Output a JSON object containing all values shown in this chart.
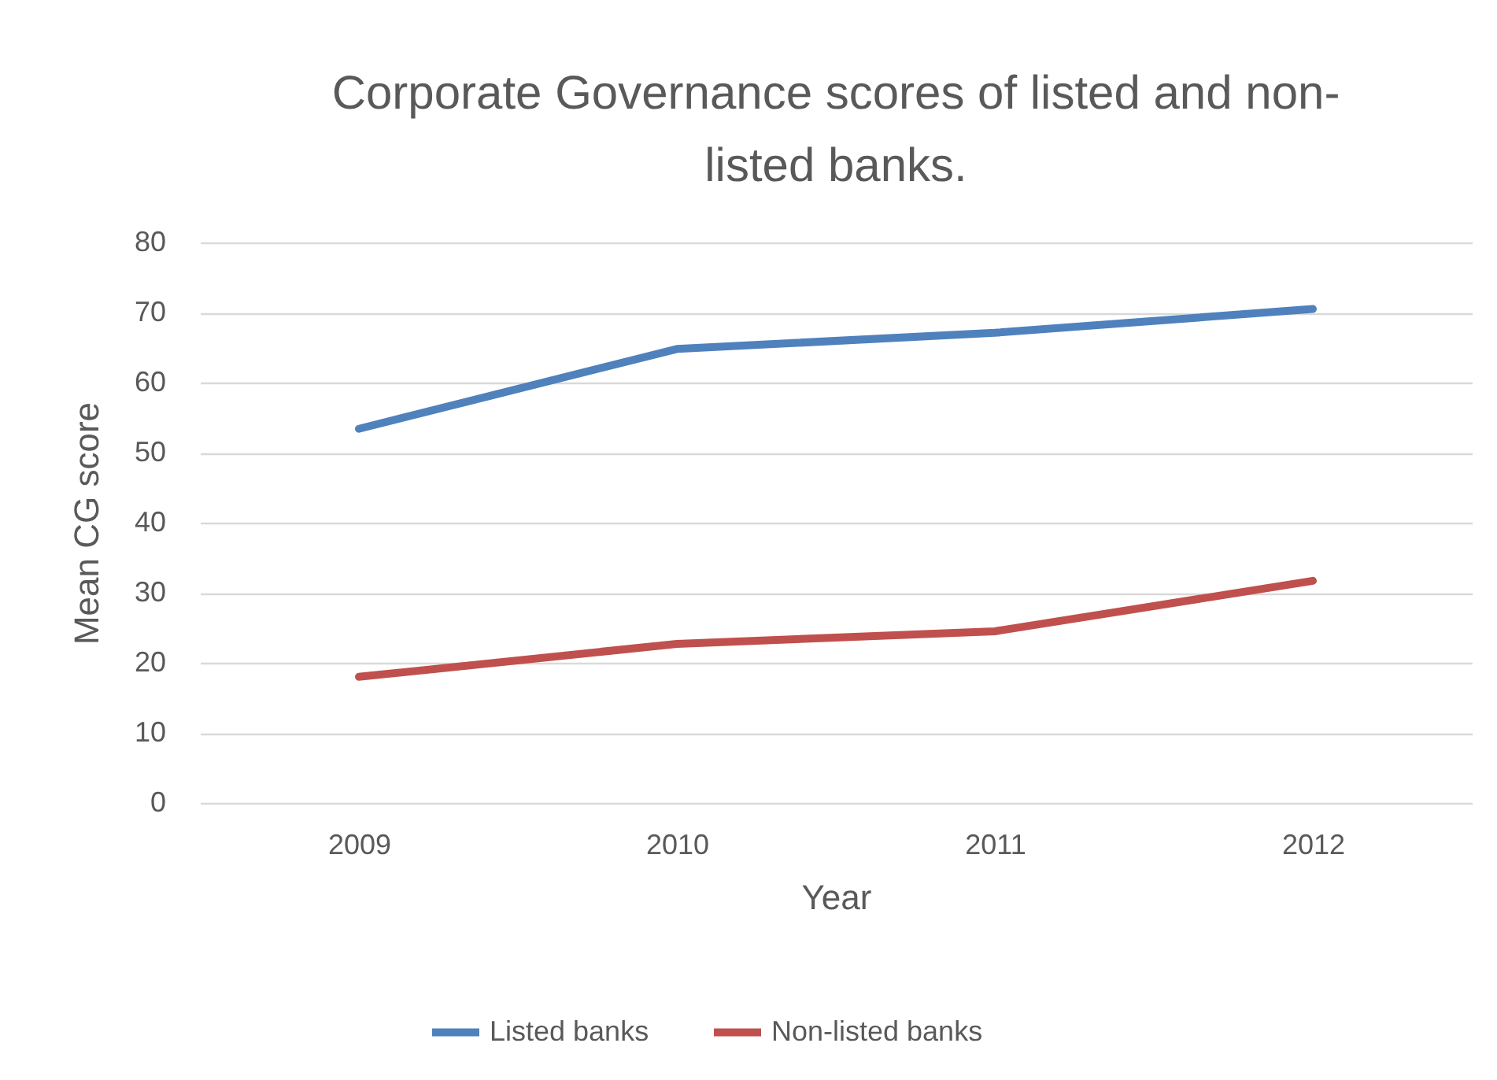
{
  "chart_data": {
    "type": "line",
    "title": "Corporate Governance scores of listed and non-listed banks.",
    "xlabel": "Year",
    "ylabel": "Mean CG score",
    "categories": [
      "2009",
      "2010",
      "2011",
      "2012"
    ],
    "series": [
      {
        "name": "Listed banks",
        "color": "#4f81bd",
        "values": [
          53.4,
          64.8,
          67.1,
          70.5
        ]
      },
      {
        "name": "Non-listed banks",
        "color": "#c0504d",
        "values": [
          18.0,
          22.7,
          24.5,
          31.7
        ]
      }
    ],
    "ylim": [
      0,
      80
    ],
    "yticks": [
      0,
      10,
      20,
      30,
      40,
      50,
      60,
      70,
      80
    ],
    "grid": "y",
    "legend": "bottom",
    "marker": "none",
    "line_style": "solid"
  }
}
